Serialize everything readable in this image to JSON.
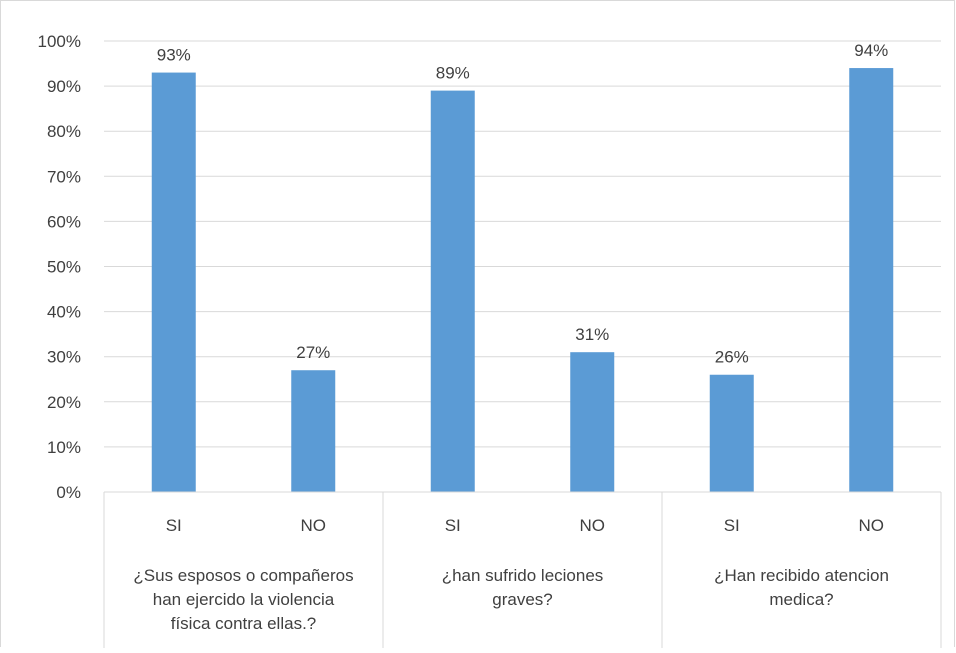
{
  "chart_data": {
    "type": "bar",
    "groups": [
      {
        "label_lines": [
          "¿Sus esposos o compañeros",
          "han ejercido la violencia",
          "física contra ellas.?"
        ],
        "categories": [
          "SI",
          "NO"
        ],
        "values": [
          93,
          27
        ]
      },
      {
        "label_lines": [
          "¿han sufrido leciones",
          "graves?"
        ],
        "categories": [
          "SI",
          "NO"
        ],
        "values": [
          89,
          31
        ]
      },
      {
        "label_lines": [
          "¿Han recibido atencion",
          "medica?"
        ],
        "categories": [
          "SI",
          "NO"
        ],
        "values": [
          26,
          94
        ]
      }
    ],
    "y_ticks": [
      "0%",
      "10%",
      "20%",
      "30%",
      "40%",
      "50%",
      "60%",
      "70%",
      "80%",
      "90%",
      "100%"
    ],
    "ylim": [
      0,
      100
    ],
    "value_suffix": "%",
    "grid": true,
    "legend": "none",
    "title": "",
    "xlabel": "",
    "ylabel": "",
    "colors": {
      "bar": "#5B9BD5",
      "grid": "#d9d9d9",
      "text": "#404040"
    }
  }
}
